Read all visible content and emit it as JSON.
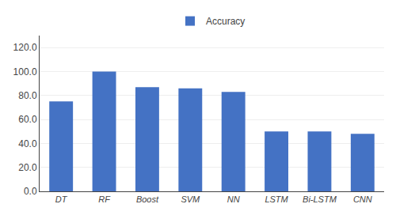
{
  "chart_data": {
    "type": "bar",
    "categories": [
      "DT",
      "RF",
      "Boost",
      "SVM",
      "NN",
      "LSTM",
      "Bi-LSTM",
      "CNN"
    ],
    "series": [
      {
        "name": "Accuracy",
        "color": "#4472C4",
        "values": [
          75.0,
          100.0,
          87.0,
          86.0,
          83.0,
          50.0,
          50.0,
          48.0
        ]
      }
    ],
    "ylim": [
      0,
      130
    ],
    "yticks": [
      {
        "value": 0,
        "label": "0.0"
      },
      {
        "value": 20,
        "label": "20.0"
      },
      {
        "value": 40,
        "label": "40.0"
      },
      {
        "value": 60,
        "label": "60.0"
      },
      {
        "value": 80,
        "label": "80.0"
      },
      {
        "value": 100,
        "label": "100.0"
      },
      {
        "value": 120,
        "label": "120.0"
      }
    ],
    "grid": true,
    "legend": "top"
  }
}
